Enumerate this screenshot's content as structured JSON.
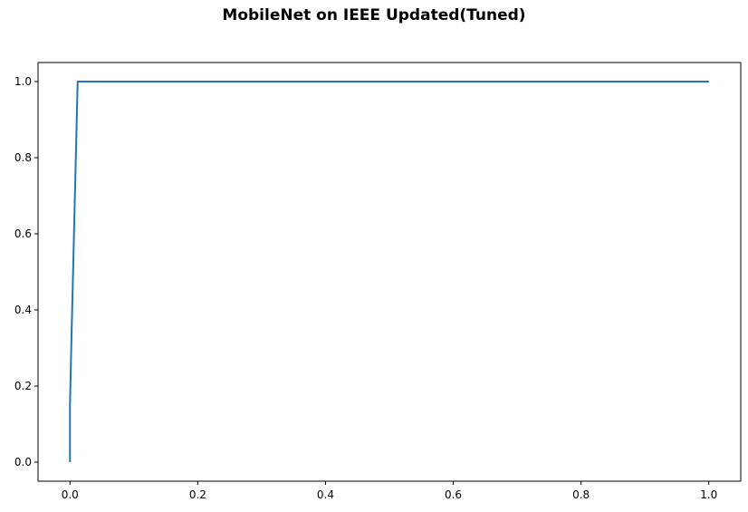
{
  "chart_data": {
    "type": "line",
    "title": "MobileNet on IEEE Updated(Tuned)",
    "xlabel": "",
    "ylabel": "",
    "xlim": [
      -0.05,
      1.05
    ],
    "ylim": [
      -0.05,
      1.05
    ],
    "xticks": [
      0.0,
      0.2,
      0.4,
      0.6,
      0.8,
      1.0
    ],
    "xtick_labels": [
      "0.0",
      "0.2",
      "0.4",
      "0.6",
      "0.8",
      "1.0"
    ],
    "yticks": [
      0.0,
      0.2,
      0.4,
      0.6,
      0.8,
      1.0
    ],
    "ytick_labels": [
      "0.0",
      "0.2",
      "0.4",
      "0.6",
      "0.8",
      "1.0"
    ],
    "grid": false,
    "series": [
      {
        "color": "#1f77b4",
        "x": [
          0.0,
          0.0,
          0.002,
          0.012,
          1.0
        ],
        "y": [
          0.0,
          0.15,
          0.3,
          1.0,
          1.0
        ]
      }
    ]
  }
}
